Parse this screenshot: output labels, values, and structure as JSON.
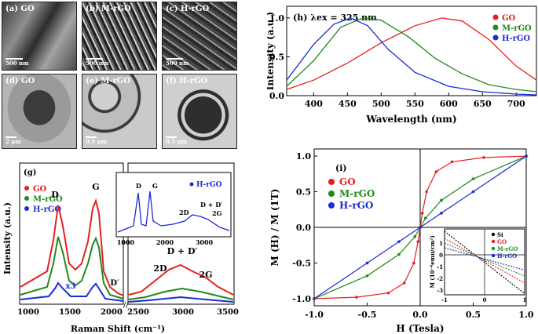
{
  "micrographs": [
    {
      "label": "(a) GO",
      "scale": "500 nm"
    },
    {
      "label": "(b) M-rGO",
      "scale": "500 nm"
    },
    {
      "label": "(c) H-rGO",
      "scale": "500 nm"
    },
    {
      "label": "(d) GO",
      "scale": "2 μm"
    },
    {
      "label": "(e) M-rGO",
      "scale": "0.5 μm"
    },
    {
      "label": "(f) H-rGO",
      "scale": "0.5 μm"
    }
  ],
  "colors": {
    "GO": "#e62020",
    "M-rGO": "#1f8a1f",
    "H-rGO": "#1c2bd6"
  },
  "panel_g": {
    "panel_label": "(g)",
    "ylabel": "Intensity  (a.u.)",
    "xlabel": "Raman Shift (cm⁻¹)",
    "legend": [
      "GO",
      "M-rGO",
      "H-rGO"
    ],
    "peak_labels": {
      "D": "D",
      "G": "G",
      "Dprime": "D′",
      "D_Dprime": "D + D′",
      "2D": "2D",
      "2G": "2G",
      "x3": "x3"
    },
    "xticks_left": [
      "1000",
      "1500",
      "2000"
    ],
    "xticks_right": [
      "2500",
      "3000",
      "3500"
    ],
    "inset": {
      "legend": "H-rGO",
      "labels": {
        "D": "D",
        "G": "G",
        "2D": "2D",
        "D_Dprime": "D + D′",
        "2G": "2G"
      },
      "xticks": [
        "1000",
        "2000",
        "3000"
      ]
    }
  },
  "chart_data": [
    {
      "type": "line",
      "title": "(h) λex = 325 nm",
      "xlabel": "Wavelength (nm)",
      "ylabel": "Intensity (a.u.)",
      "xlim": [
        360,
        730
      ],
      "ylim": [
        0,
        1.15
      ],
      "xticks": [
        400,
        450,
        500,
        550,
        600,
        650,
        700
      ],
      "yticks": [
        0.0,
        0.5,
        1.0
      ],
      "ytick_labels": [
        "0.0",
        "0.5",
        "1.0"
      ],
      "series": [
        {
          "name": "GO",
          "x": [
            360,
            400,
            450,
            500,
            550,
            590,
            620,
            660,
            700,
            730
          ],
          "y": [
            0.08,
            0.2,
            0.42,
            0.68,
            0.9,
            1.0,
            0.96,
            0.72,
            0.38,
            0.2
          ]
        },
        {
          "name": "M-rGO",
          "x": [
            360,
            400,
            440,
            470,
            480,
            500,
            540,
            580,
            620,
            660,
            700,
            730
          ],
          "y": [
            0.12,
            0.45,
            0.88,
            0.99,
            1.0,
            0.97,
            0.76,
            0.48,
            0.28,
            0.14,
            0.08,
            0.05
          ]
        },
        {
          "name": "H-rGO",
          "x": [
            360,
            400,
            430,
            455,
            480,
            510,
            550,
            600,
            650,
            700,
            730
          ],
          "y": [
            0.2,
            0.66,
            0.92,
            1.0,
            0.9,
            0.6,
            0.3,
            0.12,
            0.05,
            0.02,
            0.01
          ]
        }
      ]
    },
    {
      "type": "line",
      "title": "(i)",
      "xlabel": "H (Tesla)",
      "ylabel": "M (H) / M (1T)",
      "xlim": [
        -1.0,
        1.0
      ],
      "ylim": [
        -1.1,
        1.1
      ],
      "xticks": [
        -1.0,
        -0.5,
        0.0,
        0.5,
        1.0
      ],
      "yticks": [
        -1.0,
        -0.5,
        0.0,
        0.5,
        1.0
      ],
      "tick_labels_x": [
        "-1.0",
        "-0.5",
        "0.0",
        "0.5",
        "1.0"
      ],
      "tick_labels_y": [
        "-1.0",
        "-0.5",
        "0.0",
        "0.5",
        "1.0"
      ],
      "series": [
        {
          "name": "GO",
          "x": [
            -1.0,
            -0.6,
            -0.3,
            -0.15,
            -0.06,
            -0.02,
            0.0,
            0.02,
            0.06,
            0.15,
            0.3,
            0.6,
            1.0
          ],
          "y": [
            -1.0,
            -0.98,
            -0.92,
            -0.78,
            -0.5,
            -0.2,
            0.0,
            0.2,
            0.5,
            0.78,
            0.92,
            0.98,
            1.0
          ]
        },
        {
          "name": "M-rGO",
          "x": [
            -1.0,
            -0.5,
            -0.2,
            -0.05,
            0.0,
            0.05,
            0.2,
            0.5,
            1.0
          ],
          "y": [
            -1.0,
            -0.68,
            -0.38,
            -0.13,
            0.0,
            0.13,
            0.38,
            0.68,
            1.0
          ]
        },
        {
          "name": "H-rGO",
          "x": [
            -1.0,
            -0.5,
            -0.2,
            0.0,
            0.2,
            0.5,
            1.0
          ],
          "y": [
            -1.0,
            -0.5,
            -0.2,
            0.0,
            0.2,
            0.5,
            1.0
          ]
        }
      ],
      "inset": {
        "ylabel": "M (10⁻⁴emu/cm²)",
        "xticks": [
          -1,
          0,
          1
        ],
        "yticks": [
          1,
          0,
          -1,
          -2,
          -3
        ],
        "xlim": [
          -1,
          1
        ],
        "ylim": [
          -3.4,
          2.2
        ],
        "series": [
          {
            "name": "Si",
            "x": [
              -1,
              1
            ],
            "y": [
              2.0,
              -3.3
            ]
          },
          {
            "name": "GO",
            "x": [
              -1,
              1
            ],
            "y": [
              1.4,
              -2.4
            ]
          },
          {
            "name": "M-rGO",
            "x": [
              -1,
              1
            ],
            "y": [
              1.0,
              -1.8
            ]
          },
          {
            "name": "H-rGO",
            "x": [
              -1,
              1
            ],
            "y": [
              0.6,
              -1.3
            ]
          }
        ],
        "colors": {
          "Si": "#000000",
          "GO": "#e62020",
          "M-rGO": "#1f8a1f",
          "H-rGO": "#1c2bd6"
        }
      }
    }
  ]
}
